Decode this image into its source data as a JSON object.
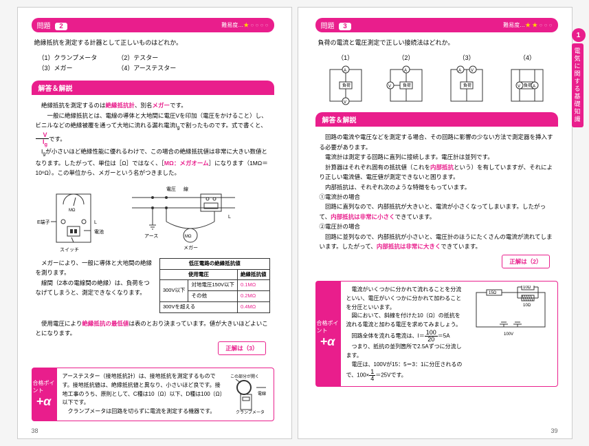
{
  "left": {
    "q_label": "問題",
    "q_num": "2",
    "diff_label": "難易度…",
    "question": "絶縁抵抗を測定する計器として正しいものはどれか。",
    "opts": [
      [
        "（1）クランプメータ",
        "（3）メガー"
      ],
      [
        "（2）テスター",
        "（4）アーステスター"
      ]
    ],
    "sect": "解答＆解説",
    "ex": [
      "　絶縁抵抗を測定するのは",
      "絶縁抵抗計",
      "、別名",
      "メガー",
      "です。",
      "　一般に絶縁抵抗とは、電線の導体と大地間に電圧Vを印加（電圧をかけること）し、ビニルなどの絶縁被覆を通って大地に流れる漏れ電流I",
      "で割ったものです。式で書くと、",
      "　I",
      "が小さいほど絶縁性能に優れるわけで、この場合の絶縁抵抗値は非常に大きい数値となります。したがって、単位は［Ω］ではなく、［",
      "MΩ：メガオーム",
      "］になります（1MΩ＝10⁶Ω）。この単位から、メガーという名がつきました。",
      "　メガーにより、一般に導体と大地間の絶縁を測ります。",
      "　線間（2本の電線間の絶縁）は、負荷をつなげてしまうと、測定できなくなります。",
      "　使用電圧により",
      "絶縁抵抗の最低値",
      "は表のとおり決まっています。値が大きいほどよいことになります。"
    ],
    "table": {
      "caption": "低圧電路の絶縁抵抗値",
      "h1": "使用電圧",
      "h2": "絶縁抵抗値",
      "rows": [
        [
          "300V以下",
          "対地電圧150V以下",
          "0.1MΩ"
        ],
        [
          "",
          "その他",
          "0.2MΩ"
        ],
        [
          "300Vを超える",
          "",
          "0.4MΩ"
        ]
      ]
    },
    "answer": "正解は（3）",
    "alpha_label": "合格ポイント",
    "alpha_text1": "アーステスター（接地抵抗計）",
    "alpha_text2": "は、接地抵抗を測定するものです。接地抵抗値は、絶縁抵抗値と異なり、小さいほど良です。接地工事のうち、原則として、",
    "alpha_text3": "C種は10〔Ω〕以下、D種は100〔Ω〕以下",
    "alpha_text4": "です。",
    "alpha_text5": "クランプメータ",
    "alpha_text6": "は回路を切らずに電流を測定する機器です。",
    "alpha_caption": "クランプメータ",
    "pagenum": "38",
    "svg_labels": {
      "denchi": "電池",
      "suicchi": "スイッチ",
      "denatsu": "電圧",
      "asu": "アース",
      "mega": "メガー",
      "tanshi": "E端子",
      "hikari": "L",
      "arrow": "この部分が開く",
      "densen": "電線"
    }
  },
  "right": {
    "q_label": "問題",
    "q_num": "3",
    "diff_label": "難易度…",
    "question": "負荷の電流と電圧測定で正しい接続法はどれか。",
    "opts_h": [
      "（1）",
      "（2）",
      "（3）",
      "（4）"
    ],
    "sect": "解答＆解説",
    "ex_lines": [
      "　回路の電流や電圧などを測定する場合、その回路に影響の少ない方法で測定器を挿入する必要があります。",
      "　電流計は測定する回路に直列に接続します。電圧計は並列です。",
      "　計算器はそれぞれ固有の抵抗値（これを<内部抵抗>という）を有していますが、それにより正しい電流値、電圧値が測定できないと困ります。",
      "　内部抵抗は、それぞれ次のような特徴をもっています。",
      "①電流計の場合",
      "　回路に直列なので、内部抵抗が大きいと、電流が小さくなってしまいます。したがって、<内部抵抗は非常に小さく>できています。",
      "②電圧計の場合",
      "　回路に並列なので、内部抵抗が小さいと、電圧計のほうにたくさんの電流が流れてしまいます。したがって、<内部抵抗は非常に大きく>できています。"
    ],
    "answer": "正解は（2）",
    "alpha_label": "合格ポイント",
    "alpha_lines": [
      "　電流がいくつかに分かれて流れることを<分流>といい、電圧がいくつかに分かれて加わることを<分圧>といいます。",
      "　図において、斜線を付けた10〔Ω〕の抵抗を流れる電流と加わる電圧を求めてみましょう。",
      "　回路全体を流れる電流は、I＝",
      "＝5A",
      "　つまり、抵抗の並列箇所で2.5Aずつに分流します。",
      "　電圧は、100Vが15：5＝3：1に分圧されるので、100×",
      "＝25Vです。"
    ],
    "frac1": {
      "n": "100",
      "d": "20"
    },
    "frac2": {
      "n": "1",
      "d": "4"
    },
    "pagenum": "39",
    "side": {
      "num": "1",
      "label": "電気に関する基礎知識"
    },
    "svg_labels": {
      "fuka": "負荷",
      "r15": "15Ω",
      "r10a": "10Ω",
      "r10b": "10Ω",
      "v100": "100V"
    }
  }
}
